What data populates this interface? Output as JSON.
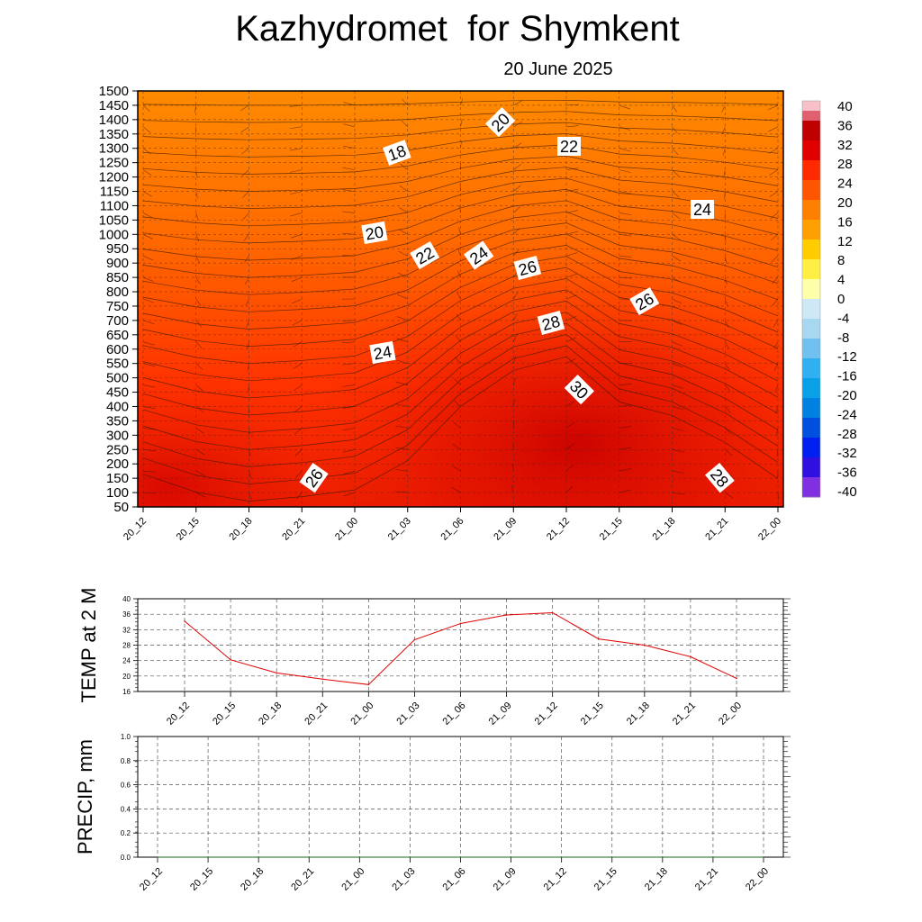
{
  "title": "Kazhydromet  for Shymkent",
  "subtitle": "20 June 2025",
  "time_labels": [
    "20_12",
    "20_15",
    "20_18",
    "20_21",
    "21_00",
    "21_03",
    "21_06",
    "21_09",
    "21_12",
    "21_15",
    "21_18",
    "21_21",
    "22_00"
  ],
  "colorbar": {
    "labels": [
      "40",
      "36",
      "32",
      "28",
      "24",
      "20",
      "16",
      "12",
      "8",
      "4",
      "0",
      "-4",
      "-8",
      "-12",
      "-16",
      "-20",
      "-24",
      "-28",
      "-32",
      "-36",
      "-40"
    ]
  },
  "colors": {
    "line": "#e00000",
    "grid": "#555555",
    "contour": "#3a1a00"
  },
  "chart_data": [
    {
      "type": "heatmap",
      "name_hint": "cross-section",
      "y_ticks": [
        1500,
        1450,
        1400,
        1350,
        1300,
        1250,
        1200,
        1150,
        1100,
        1050,
        1000,
        950,
        900,
        850,
        800,
        750,
        700,
        650,
        600,
        550,
        500,
        450,
        400,
        350,
        300,
        250,
        200,
        150,
        100,
        50
      ],
      "y_range": [
        50,
        1500
      ],
      "x_categories": [
        "20_12",
        "20_15",
        "20_18",
        "20_21",
        "21_00",
        "21_03",
        "21_06",
        "21_09",
        "21_12",
        "21_15",
        "21_18",
        "21_21",
        "22_00"
      ],
      "contour_labels": [
        "18",
        "20",
        "22",
        "24",
        "20",
        "22",
        "24",
        "26",
        "28",
        "30",
        "24",
        "26",
        "24",
        "26",
        "28"
      ],
      "color_scale_range": [
        -40,
        40
      ]
    },
    {
      "type": "line",
      "ylabel": "TEMP at 2 M",
      "x": [
        "20_12",
        "20_15",
        "20_18",
        "20_21",
        "21_00",
        "21_03",
        "21_06",
        "21_09",
        "21_12",
        "21_15",
        "21_18",
        "21_21",
        "22_00"
      ],
      "y": [
        34.2,
        24.2,
        20.8,
        19.2,
        17.8,
        29.4,
        33.6,
        35.8,
        36.4,
        29.6,
        28.0,
        25.0,
        19.4
      ],
      "y_ticks": [
        "40",
        "36",
        "32",
        "28",
        "24",
        "20",
        "16"
      ],
      "ylim": [
        16,
        40
      ],
      "grid": true
    },
    {
      "type": "line",
      "ylabel": "PRECIP, mm",
      "x": [
        "20_12",
        "20_15",
        "20_18",
        "20_21",
        "21_00",
        "21_03",
        "21_06",
        "21_09",
        "21_12",
        "21_15",
        "21_18",
        "21_21",
        "22_00"
      ],
      "y": [
        0,
        0,
        0,
        0,
        0,
        0,
        0,
        0,
        0,
        0,
        0,
        0,
        0
      ],
      "y_ticks": [
        "1.0",
        "0.8",
        "0.6",
        "0.4",
        "0.2",
        "0.0"
      ],
      "ylim": [
        0,
        1
      ],
      "grid": true
    }
  ]
}
